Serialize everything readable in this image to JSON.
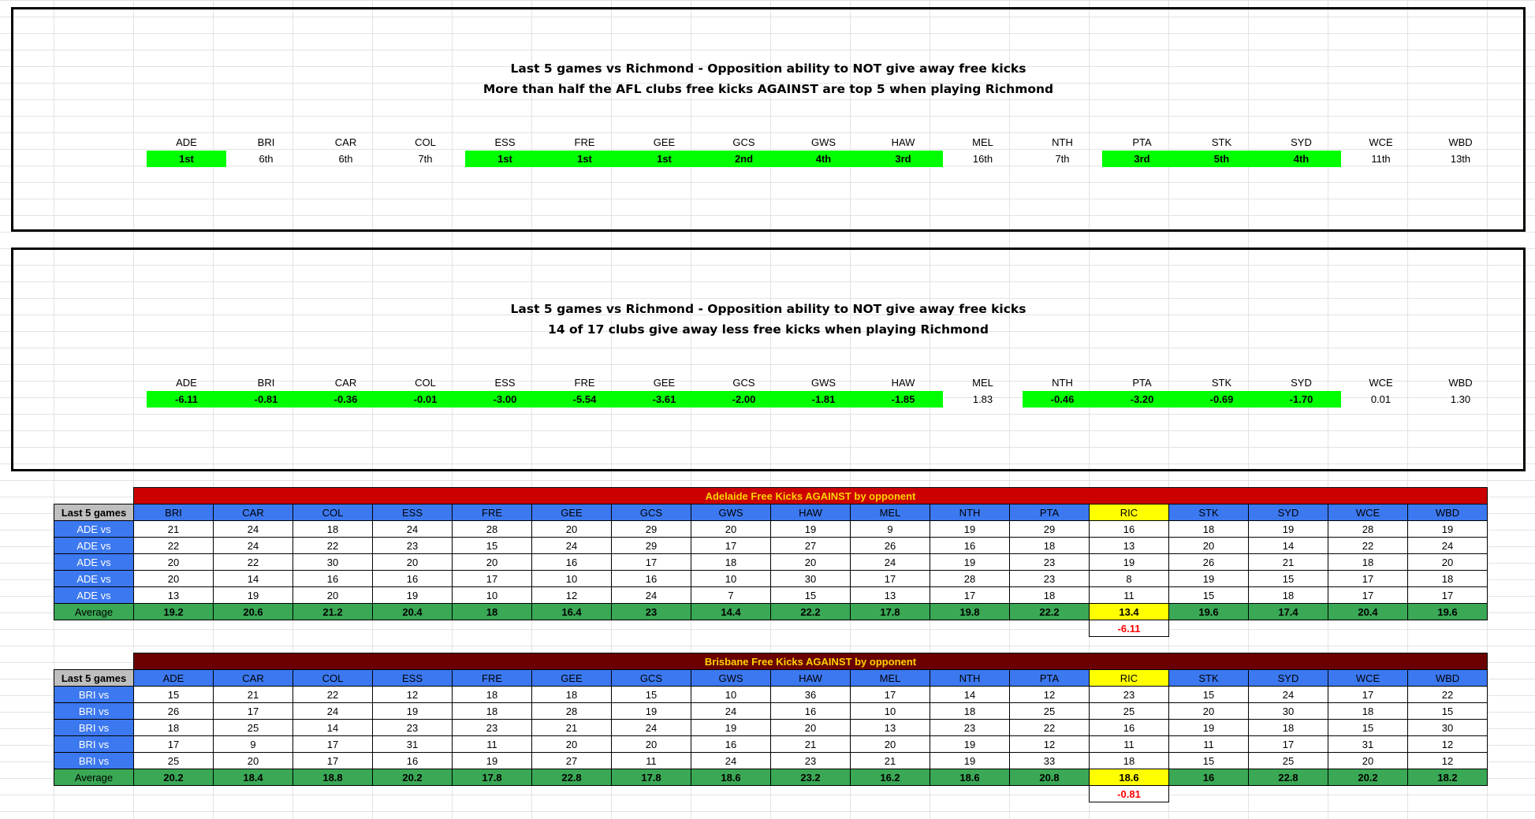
{
  "clubs17_a": [
    "ADE",
    "BRI",
    "CAR",
    "COL",
    "ESS",
    "FRE",
    "GEE",
    "GCS",
    "GWS",
    "HAW",
    "MEL",
    "NTH",
    "PTA",
    "STK",
    "SYD",
    "WCE",
    "WBD"
  ],
  "panel1": {
    "line1": "Last 5 games vs Richmond - Opposition ability to NOT give away free kicks",
    "line2": "More than half the AFL clubs free kicks AGAINST are top 5 when playing Richmond",
    "values": [
      {
        "v": "1st",
        "hl": true
      },
      {
        "v": "6th",
        "hl": false
      },
      {
        "v": "6th",
        "hl": false
      },
      {
        "v": "7th",
        "hl": false
      },
      {
        "v": "1st",
        "hl": true
      },
      {
        "v": "1st",
        "hl": true
      },
      {
        "v": "1st",
        "hl": true
      },
      {
        "v": "2nd",
        "hl": true
      },
      {
        "v": "4th",
        "hl": true
      },
      {
        "v": "3rd",
        "hl": true
      },
      {
        "v": "16th",
        "hl": false
      },
      {
        "v": "7th",
        "hl": false
      },
      {
        "v": "3rd",
        "hl": true
      },
      {
        "v": "5th",
        "hl": true
      },
      {
        "v": "4th",
        "hl": true
      },
      {
        "v": "11th",
        "hl": false
      },
      {
        "v": "13th",
        "hl": false
      }
    ]
  },
  "panel2": {
    "line1": "Last 5 games vs Richmond - Opposition ability to NOT give away free kicks",
    "line2": "14 of 17 clubs give away less free kicks when playing Richmond",
    "values": [
      {
        "v": "-6.11",
        "hl": true
      },
      {
        "v": "-0.81",
        "hl": true
      },
      {
        "v": "-0.36",
        "hl": true
      },
      {
        "v": "-0.01",
        "hl": true
      },
      {
        "v": "-3.00",
        "hl": true
      },
      {
        "v": "-5.54",
        "hl": true
      },
      {
        "v": "-3.61",
        "hl": true
      },
      {
        "v": "-2.00",
        "hl": true
      },
      {
        "v": "-1.81",
        "hl": true
      },
      {
        "v": "-1.85",
        "hl": true
      },
      {
        "v": "1.83",
        "hl": false
      },
      {
        "v": "-0.46",
        "hl": true
      },
      {
        "v": "-3.20",
        "hl": true
      },
      {
        "v": "-0.69",
        "hl": true
      },
      {
        "v": "-1.70",
        "hl": true
      },
      {
        "v": "0.01",
        "hl": false
      },
      {
        "v": "1.30",
        "hl": false
      }
    ]
  },
  "tables": [
    {
      "title": "Adelaide Free Kicks AGAINST by opponent",
      "title_bg": "#cc0000",
      "corner_label": "Last 5 games",
      "headers": [
        "BRI",
        "CAR",
        "COL",
        "ESS",
        "FRE",
        "GEE",
        "GCS",
        "GWS",
        "HAW",
        "MEL",
        "NTH",
        "PTA",
        "RIC",
        "STK",
        "SYD",
        "WCE",
        "WBD"
      ],
      "rows": [
        {
          "label": "ADE vs",
          "values": [
            "21",
            "24",
            "18",
            "24",
            "28",
            "20",
            "29",
            "20",
            "19",
            "9",
            "19",
            "29",
            "16",
            "18",
            "19",
            "28",
            "19"
          ]
        },
        {
          "label": "ADE vs",
          "values": [
            "22",
            "24",
            "22",
            "23",
            "15",
            "24",
            "29",
            "17",
            "27",
            "26",
            "16",
            "18",
            "13",
            "20",
            "14",
            "22",
            "24"
          ]
        },
        {
          "label": "ADE vs",
          "values": [
            "20",
            "22",
            "30",
            "20",
            "20",
            "16",
            "17",
            "18",
            "20",
            "24",
            "19",
            "23",
            "19",
            "26",
            "21",
            "18",
            "20"
          ]
        },
        {
          "label": "ADE vs",
          "values": [
            "20",
            "14",
            "16",
            "16",
            "17",
            "10",
            "16",
            "10",
            "30",
            "17",
            "28",
            "23",
            "8",
            "19",
            "15",
            "17",
            "18"
          ]
        },
        {
          "label": "ADE vs",
          "values": [
            "13",
            "19",
            "20",
            "19",
            "10",
            "12",
            "24",
            "7",
            "15",
            "13",
            "17",
            "18",
            "11",
            "15",
            "18",
            "17",
            "17"
          ]
        }
      ],
      "avg_label": "Average",
      "averages": [
        "19.2",
        "20.6",
        "21.2",
        "20.4",
        "18",
        "16.4",
        "23",
        "14.4",
        "22.2",
        "17.8",
        "19.8",
        "22.2",
        "13.4",
        "19.6",
        "17.4",
        "20.4",
        "19.6"
      ],
      "diff": "-6.11"
    },
    {
      "title": "Brisbane Free Kicks AGAINST by opponent",
      "title_bg": "#6b0000",
      "corner_label": "Last 5 games",
      "headers": [
        "ADE",
        "CAR",
        "COL",
        "ESS",
        "FRE",
        "GEE",
        "GCS",
        "GWS",
        "HAW",
        "MEL",
        "NTH",
        "PTA",
        "RIC",
        "STK",
        "SYD",
        "WCE",
        "WBD"
      ],
      "rows": [
        {
          "label": "BRI vs",
          "values": [
            "15",
            "21",
            "22",
            "12",
            "18",
            "18",
            "15",
            "10",
            "36",
            "17",
            "14",
            "12",
            "23",
            "15",
            "24",
            "17",
            "22"
          ]
        },
        {
          "label": "BRI vs",
          "values": [
            "26",
            "17",
            "24",
            "19",
            "18",
            "28",
            "19",
            "24",
            "16",
            "10",
            "18",
            "25",
            "25",
            "20",
            "30",
            "18",
            "15"
          ]
        },
        {
          "label": "BRI vs",
          "values": [
            "18",
            "25",
            "14",
            "23",
            "23",
            "21",
            "24",
            "19",
            "20",
            "13",
            "23",
            "22",
            "16",
            "19",
            "18",
            "15",
            "30"
          ]
        },
        {
          "label": "BRI vs",
          "values": [
            "17",
            "9",
            "17",
            "31",
            "11",
            "20",
            "20",
            "16",
            "21",
            "20",
            "19",
            "12",
            "11",
            "11",
            "17",
            "31",
            "12"
          ]
        },
        {
          "label": "BRI vs",
          "values": [
            "25",
            "20",
            "17",
            "16",
            "19",
            "27",
            "11",
            "24",
            "23",
            "21",
            "19",
            "33",
            "18",
            "15",
            "25",
            "20",
            "12"
          ]
        }
      ],
      "avg_label": "Average",
      "averages": [
        "20.2",
        "18.4",
        "18.8",
        "20.2",
        "17.8",
        "22.8",
        "17.8",
        "18.6",
        "23.2",
        "16.2",
        "18.6",
        "20.8",
        "18.6",
        "16",
        "22.8",
        "20.2",
        "18.2"
      ],
      "diff": "-0.81"
    }
  ]
}
